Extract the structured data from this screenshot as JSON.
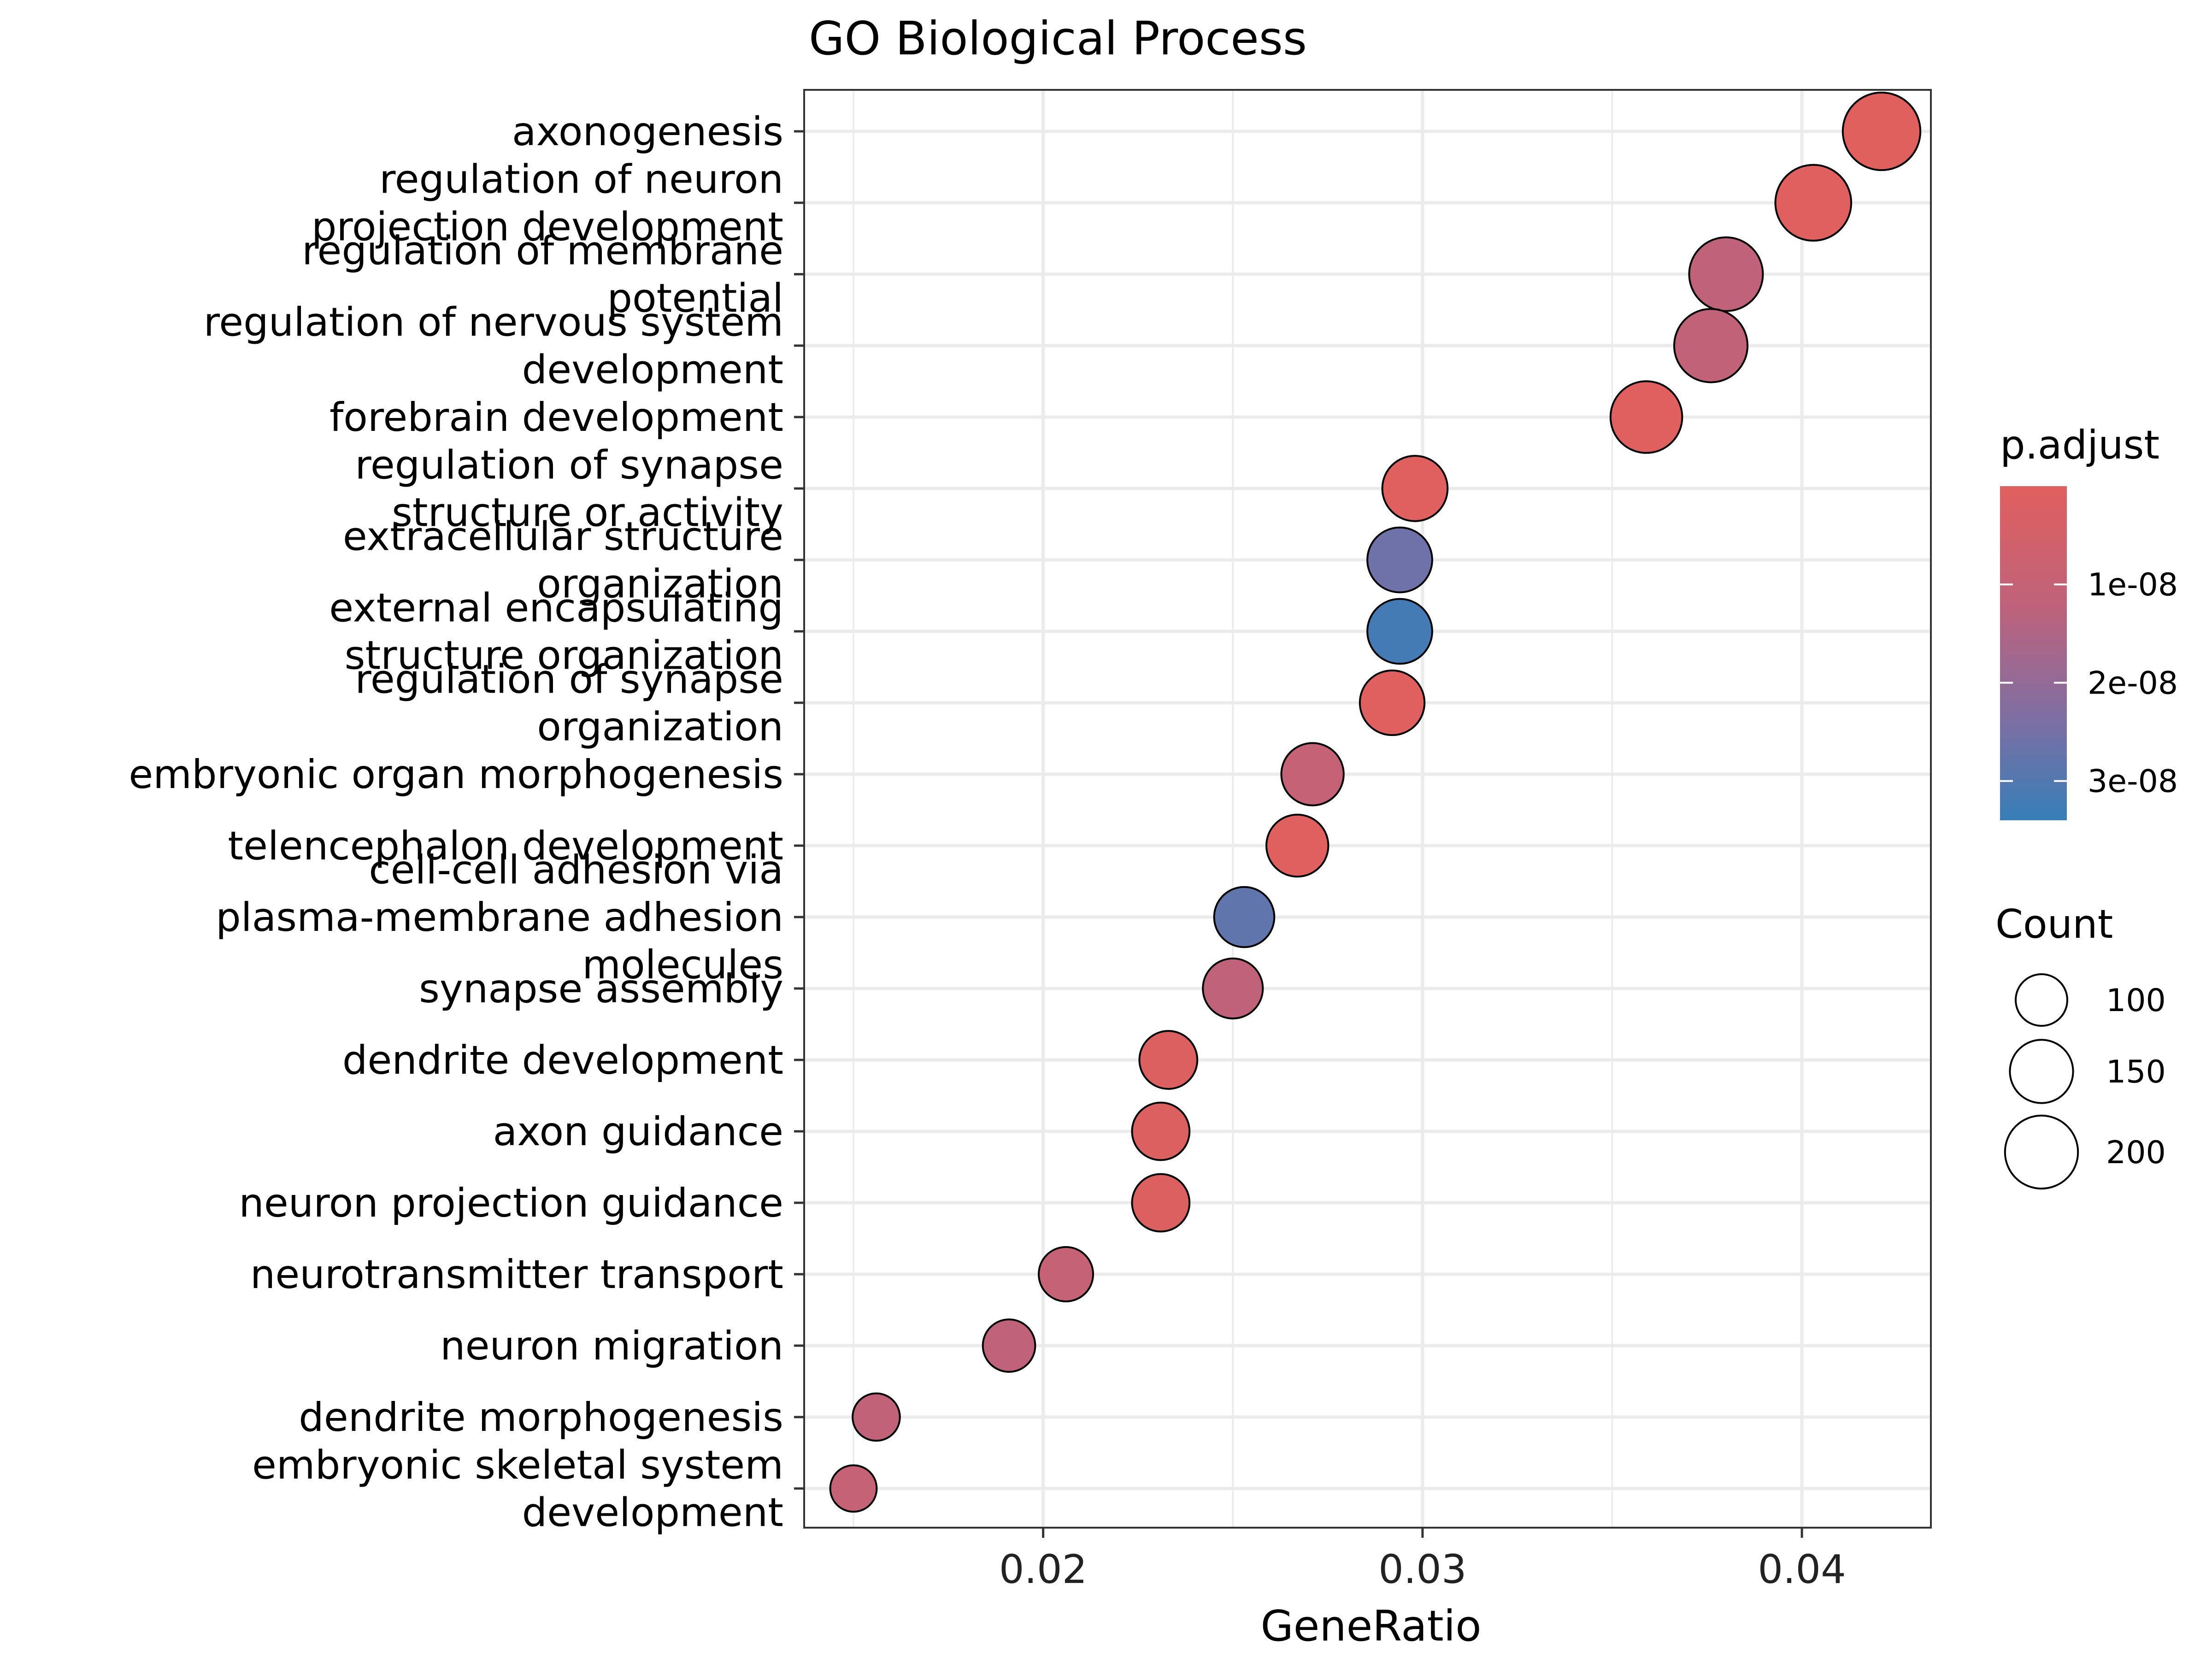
{
  "chart_data": {
    "type": "scatter",
    "title": "GO Biological Process",
    "xlabel": "GeneRatio",
    "ylabel": "",
    "xlim": [
      0.0137,
      0.0434
    ],
    "xticks": [
      {
        "value": 0.02,
        "label": "0.02"
      },
      {
        "value": 0.03,
        "label": "0.03"
      },
      {
        "value": 0.04,
        "label": "0.04"
      }
    ],
    "grid": true,
    "categories": [
      [
        "axonogenesis"
      ],
      [
        "regulation of neuron",
        "projection development"
      ],
      [
        "regulation of membrane",
        "potential"
      ],
      [
        "regulation of nervous system",
        "development"
      ],
      [
        "forebrain development"
      ],
      [
        "regulation of synapse",
        "structure or activity"
      ],
      [
        "extracellular structure",
        "organization"
      ],
      [
        "external encapsulating",
        "structure organization"
      ],
      [
        "regulation of synapse",
        "organization"
      ],
      [
        "embryonic organ morphogenesis"
      ],
      [
        "telencephalon development"
      ],
      [
        "cell-cell adhesion via",
        "plasma-membrane adhesion",
        "molecules"
      ],
      [
        "synapse assembly"
      ],
      [
        "dendrite development"
      ],
      [
        "axon guidance"
      ],
      [
        "neuron projection guidance"
      ],
      [
        "neurotransmitter transport"
      ],
      [
        "neuron migration"
      ],
      [
        "dendrite morphogenesis"
      ],
      [
        "embryonic skeletal system",
        "development"
      ]
    ],
    "gene_ratio": [
      0.0421,
      0.0403,
      0.038,
      0.0376,
      0.0359,
      0.0298,
      0.0294,
      0.0294,
      0.0292,
      0.0271,
      0.0267,
      0.0253,
      0.025,
      0.0233,
      0.0231,
      0.0231,
      0.0206,
      0.0191,
      0.0156,
      0.015
    ],
    "count": [
      226,
      216,
      204,
      202,
      193,
      160,
      158,
      158,
      157,
      146,
      144,
      136,
      135,
      126,
      124,
      124,
      111,
      103,
      84,
      81
    ],
    "p_adjust": [
      1e-10,
      5e-10,
      1.2e-08,
      1.1e-08,
      5e-10,
      5e-10,
      2.6e-08,
      3.2e-08,
      5e-10,
      1e-08,
      5e-10,
      2.8e-08,
      1.2e-08,
      1e-09,
      1e-09,
      1e-09,
      1e-08,
      1.2e-08,
      1.1e-08,
      1e-08
    ],
    "legend": {
      "color": {
        "title": "p.adjust",
        "ticks": [
          {
            "value": 1e-08,
            "label": "1e-08"
          },
          {
            "value": 2e-08,
            "label": "2e-08"
          },
          {
            "value": 3e-08,
            "label": "3e-08"
          }
        ],
        "range": [
          0,
          3.4e-08
        ],
        "low_color": "#E0605E",
        "high_color": "#377EB8"
      },
      "size": {
        "title": "Count",
        "entries": [
          {
            "value": 100,
            "label": "100"
          },
          {
            "value": 150,
            "label": "150"
          },
          {
            "value": 200,
            "label": "200"
          }
        ]
      },
      "placement": "right"
    }
  }
}
